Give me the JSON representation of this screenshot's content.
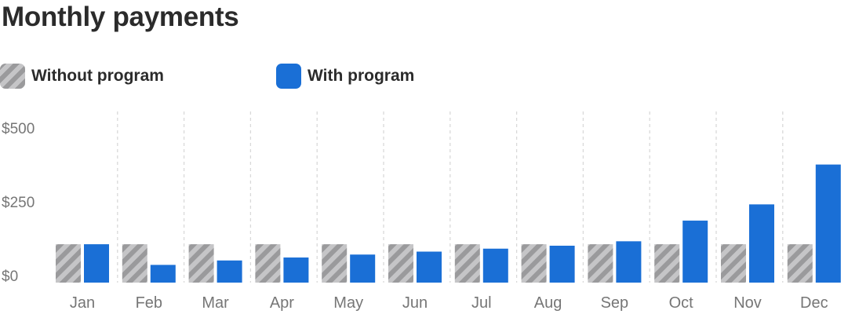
{
  "header": {
    "title": "Monthly payments"
  },
  "legend": [
    {
      "label": "Without program",
      "style": "hatched",
      "color": "#9a9a9c"
    },
    {
      "label": "With program",
      "style": "solid",
      "color": "#1a6fd6"
    }
  ],
  "chart_data": {
    "type": "bar",
    "title": "Monthly payments",
    "xlabel": "",
    "ylabel": "",
    "categories": [
      "Jan",
      "Feb",
      "Mar",
      "Apr",
      "May",
      "Jun",
      "Jul",
      "Aug",
      "Sep",
      "Oct",
      "Nov",
      "Dec"
    ],
    "series": [
      {
        "name": "Without program",
        "values": [
          130,
          130,
          130,
          130,
          130,
          130,
          130,
          130,
          130,
          130,
          130,
          130
        ],
        "color": "#9a9a9c",
        "pattern": "hatched"
      },
      {
        "name": "With program",
        "values": [
          130,
          60,
          75,
          85,
          95,
          105,
          115,
          125,
          140,
          210,
          265,
          400
        ],
        "color": "#1a6fd6",
        "pattern": "solid"
      }
    ],
    "yticks": [
      "$500",
      "$250",
      "$0"
    ],
    "ytick_values": [
      500,
      250,
      0
    ],
    "ylim": [
      0,
      500
    ],
    "grid": "vertical-dashed",
    "legend_position": "top-left"
  }
}
